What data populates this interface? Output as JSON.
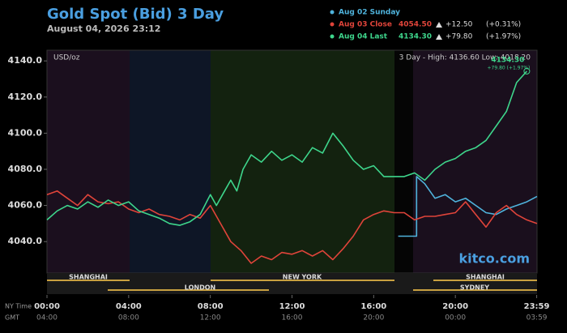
{
  "chart_data": {
    "type": "line",
    "title": "Gold Spot (Bid) 3 Day",
    "subtitle": "August 04, 2026 23:12",
    "y_unit_label": "USD/oz",
    "range_note": "3 Day - High: 4136.60  Low: 4018.20",
    "end_label": "4134.30",
    "end_change_label": "+79.80 (+1.97%)",
    "brand": "kitco.com",
    "x_row_labels": [
      "NY Time",
      "GMT"
    ],
    "gmt_labels": [
      "04:00",
      "08:00",
      "12:00",
      "16:00",
      "20:00",
      "00:00",
      "03:59"
    ],
    "sessions": [
      "SHANGHAI",
      "NEW YORK",
      "SHANGHAI",
      "LONDON",
      "SYDNEY"
    ],
    "xlim": [
      0,
      24
    ],
    "xticks": [
      {
        "value": 0,
        "label": "00:00"
      },
      {
        "value": 4,
        "label": "04:00"
      },
      {
        "value": 8,
        "label": "08:00"
      },
      {
        "value": 12,
        "label": "12:00"
      },
      {
        "value": 16,
        "label": "16:00"
      },
      {
        "value": 20,
        "label": "20:00"
      },
      {
        "value": 23.983,
        "label": "23:59"
      }
    ],
    "ylim": [
      4022.6,
      4145.9
    ],
    "yticks": [
      {
        "value": 4040,
        "label": "4040.0"
      },
      {
        "value": 4060,
        "label": "4060.0"
      },
      {
        "value": 4080,
        "label": "4080.0"
      },
      {
        "value": 4100,
        "label": "4100.0"
      },
      {
        "value": 4120,
        "label": "4120.0"
      },
      {
        "value": 4140,
        "label": "4140.0"
      }
    ],
    "grid": false,
    "series": [
      {
        "name": "Aug 02 Sunday",
        "color": "#4fb3dc",
        "x": [
          17.2,
          18.1,
          18.1,
          18.5,
          19,
          19.5,
          20,
          20.5,
          21,
          21.5,
          22,
          22.5,
          23,
          23.5,
          24
        ],
        "values": [
          4043,
          4043,
          4076,
          4072,
          4064,
          4066,
          4062,
          4064,
          4060,
          4056,
          4055,
          4058,
          4060,
          4062,
          4065
        ]
      },
      {
        "name": "Aug 03 Close",
        "last": "4054.50",
        "change": "+12.50",
        "change_pct": "(+0.31%)",
        "color": "#e0443a",
        "x": [
          0,
          0.5,
          1,
          1.5,
          2,
          2.5,
          3,
          3.5,
          4,
          4.5,
          5,
          5.5,
          6,
          6.5,
          7,
          7.5,
          8,
          8.5,
          9,
          9.5,
          10,
          10.5,
          11,
          11.5,
          12,
          12.5,
          13,
          13.5,
          14,
          14.5,
          15,
          15.5,
          16,
          16.5,
          17,
          17.5,
          18,
          18.5,
          19,
          19.5,
          20,
          20.5,
          21,
          21.5,
          22,
          22.5,
          23,
          23.5,
          24
        ],
        "values": [
          4066,
          4068,
          4064,
          4060,
          4066,
          4062,
          4061,
          4062,
          4058,
          4056,
          4058,
          4055,
          4054,
          4052,
          4055,
          4053,
          4060,
          4050,
          4040,
          4035,
          4028,
          4032,
          4030,
          4034,
          4033,
          4035,
          4032,
          4035,
          4030,
          4036,
          4043,
          4052,
          4055,
          4057,
          4056,
          4056,
          4052,
          4054,
          4054,
          4055,
          4056,
          4062,
          4055,
          4048,
          4056,
          4060,
          4055,
          4052,
          4050
        ]
      },
      {
        "name": "Aug 04 Last",
        "last": "4134.30",
        "change": "+79.80",
        "change_pct": "(+1.97%)",
        "color": "#3ed68c",
        "x": [
          0,
          0.5,
          1,
          1.5,
          2,
          2.5,
          3,
          3.5,
          4,
          4.5,
          5,
          5.5,
          6,
          6.5,
          7,
          7.5,
          8,
          8.3,
          8.7,
          9,
          9.3,
          9.6,
          10,
          10.5,
          11,
          11.5,
          12,
          12.5,
          13,
          13.5,
          14,
          14.5,
          15,
          15.5,
          16,
          16.5,
          17,
          17.5,
          18,
          18.5,
          19,
          19.5,
          20,
          20.5,
          21,
          21.5,
          22,
          22.5,
          23,
          23.5
        ],
        "values": [
          4052,
          4057,
          4060,
          4058,
          4062,
          4059,
          4063,
          4060,
          4062,
          4057,
          4055,
          4053,
          4050,
          4049,
          4051,
          4055,
          4066,
          4060,
          4068,
          4074,
          4068,
          4080,
          4088,
          4084,
          4090,
          4085,
          4088,
          4084,
          4092,
          4089,
          4100,
          4093,
          4085,
          4080,
          4082,
          4076,
          4076,
          4076,
          4078,
          4074,
          4080,
          4084,
          4086,
          4090,
          4092,
          4096,
          4104,
          4112,
          4128,
          4134.3
        ]
      }
    ]
  }
}
